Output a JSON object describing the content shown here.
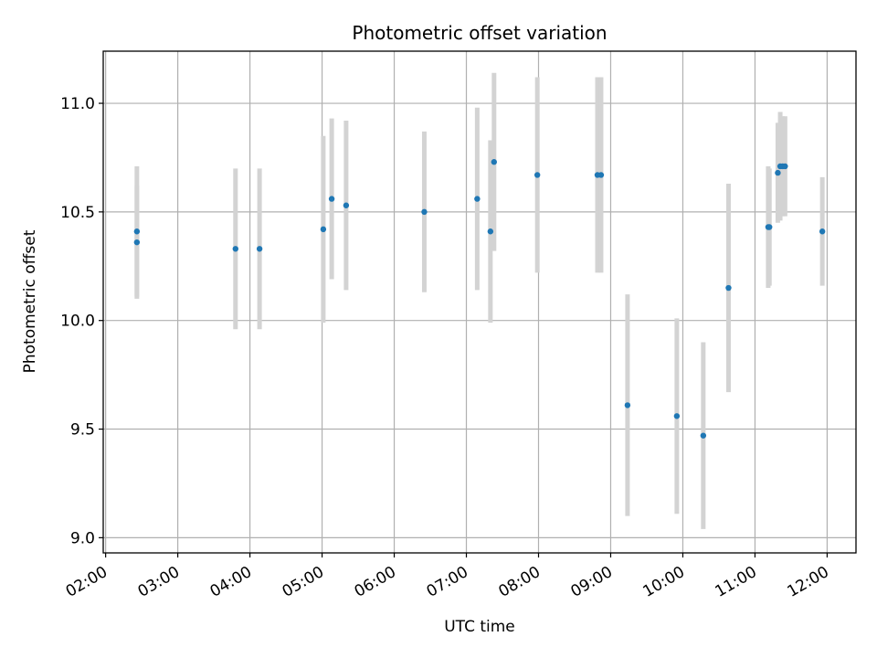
{
  "chart_data": {
    "type": "scatter",
    "title": "Photometric offset variation",
    "xlabel": "UTC time",
    "ylabel": "Photometric offset",
    "x_ticks": [
      "02:00",
      "03:00",
      "04:00",
      "05:00",
      "06:00",
      "07:00",
      "08:00",
      "09:00",
      "10:00",
      "11:00",
      "12:00"
    ],
    "y_ticks": [
      "9.0",
      "9.5",
      "10.0",
      "10.5",
      "11.0"
    ],
    "xlim": [
      "01:58",
      "12:24"
    ],
    "ylim": [
      8.93,
      11.24
    ],
    "grid": true,
    "colors": {
      "point": "#1f77b4",
      "errorbar": "#d3d3d3"
    },
    "points": [
      {
        "time": "02:26",
        "y": 10.41,
        "err": 0.3
      },
      {
        "time": "02:26",
        "y": 10.36,
        "err": 0.26
      },
      {
        "time": "03:48",
        "y": 10.33,
        "err": 0.37
      },
      {
        "time": "04:08",
        "y": 10.33,
        "err": 0.37
      },
      {
        "time": "05:01",
        "y": 10.42,
        "err": 0.43
      },
      {
        "time": "05:08",
        "y": 10.56,
        "err": 0.37
      },
      {
        "time": "05:20",
        "y": 10.53,
        "err": 0.39
      },
      {
        "time": "06:25",
        "y": 10.5,
        "err": 0.37
      },
      {
        "time": "07:09",
        "y": 10.56,
        "err": 0.42
      },
      {
        "time": "07:20",
        "y": 10.41,
        "err": 0.42
      },
      {
        "time": "07:23",
        "y": 10.73,
        "err": 0.41
      },
      {
        "time": "07:59",
        "y": 10.67,
        "err": 0.45
      },
      {
        "time": "08:49",
        "y": 10.67,
        "err": 0.45
      },
      {
        "time": "08:52",
        "y": 10.67,
        "err": 0.45
      },
      {
        "time": "09:14",
        "y": 9.61,
        "err": 0.51
      },
      {
        "time": "09:55",
        "y": 9.56,
        "err": 0.45
      },
      {
        "time": "10:17",
        "y": 9.47,
        "err": 0.43
      },
      {
        "time": "10:38",
        "y": 10.15,
        "err": 0.48
      },
      {
        "time": "11:11",
        "y": 10.43,
        "err": 0.28
      },
      {
        "time": "11:12",
        "y": 10.43,
        "err": 0.27
      },
      {
        "time": "11:19",
        "y": 10.68,
        "err": 0.23
      },
      {
        "time": "11:21",
        "y": 10.71,
        "err": 0.25
      },
      {
        "time": "11:23",
        "y": 10.71,
        "err": 0.23
      },
      {
        "time": "11:25",
        "y": 10.71,
        "err": 0.23
      },
      {
        "time": "11:56",
        "y": 10.41,
        "err": 0.25
      }
    ]
  }
}
